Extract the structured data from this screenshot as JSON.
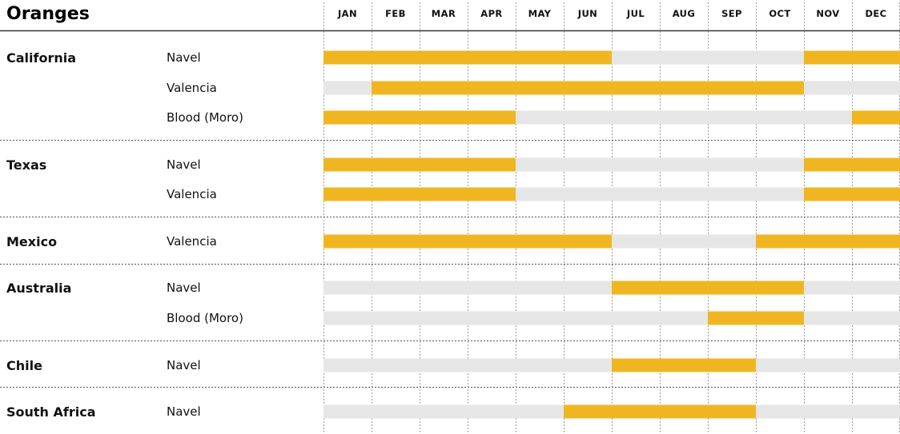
{
  "chart_data": {
    "type": "table",
    "title": "Oranges",
    "months": [
      "JAN",
      "FEB",
      "MAR",
      "APR",
      "MAY",
      "JUN",
      "JUL",
      "AUG",
      "SEP",
      "OCT",
      "NOV",
      "DEC"
    ],
    "regions": [
      {
        "name": "California",
        "varieties": [
          {
            "name": "Navel",
            "in_season": [
              1,
              1,
              1,
              1,
              1,
              1,
              0,
              0,
              0,
              0,
              1,
              1
            ]
          },
          {
            "name": "Valencia",
            "in_season": [
              0,
              1,
              1,
              1,
              1,
              1,
              1,
              1,
              1,
              1,
              0,
              0
            ]
          },
          {
            "name": "Blood (Moro)",
            "in_season": [
              1,
              1,
              1,
              1,
              0,
              0,
              0,
              0,
              0,
              0,
              0,
              1
            ]
          }
        ]
      },
      {
        "name": "Texas",
        "varieties": [
          {
            "name": "Navel",
            "in_season": [
              1,
              1,
              1,
              1,
              0,
              0,
              0,
              0,
              0,
              0,
              1,
              1
            ]
          },
          {
            "name": "Valencia",
            "in_season": [
              1,
              1,
              1,
              1,
              0,
              0,
              0,
              0,
              0,
              0,
              1,
              1
            ]
          }
        ]
      },
      {
        "name": "Mexico",
        "varieties": [
          {
            "name": "Valencia",
            "in_season": [
              1,
              1,
              1,
              1,
              1,
              1,
              0,
              0,
              0,
              1,
              1,
              1
            ]
          }
        ]
      },
      {
        "name": "Australia",
        "varieties": [
          {
            "name": "Navel",
            "in_season": [
              0,
              0,
              0,
              0,
              0,
              0,
              1,
              1,
              1,
              1,
              0,
              0
            ]
          },
          {
            "name": "Blood (Moro)",
            "in_season": [
              0,
              0,
              0,
              0,
              0,
              0,
              0,
              0,
              1,
              1,
              0,
              0
            ]
          }
        ]
      },
      {
        "name": "Chile",
        "varieties": [
          {
            "name": "Navel",
            "in_season": [
              0,
              0,
              0,
              0,
              0,
              0,
              1,
              1,
              1,
              0,
              0,
              0
            ]
          }
        ]
      },
      {
        "name": "South Africa",
        "varieties": [
          {
            "name": "Navel",
            "in_season": [
              0,
              0,
              0,
              0,
              0,
              1,
              1,
              1,
              1,
              0,
              0,
              0
            ]
          }
        ]
      }
    ],
    "colors": {
      "in_season": "#F0B622",
      "off_season": "#E6E6E6",
      "rule": "#333333",
      "divider": "#555555",
      "gridline": "#9A9A9A",
      "text": "#111111"
    }
  }
}
